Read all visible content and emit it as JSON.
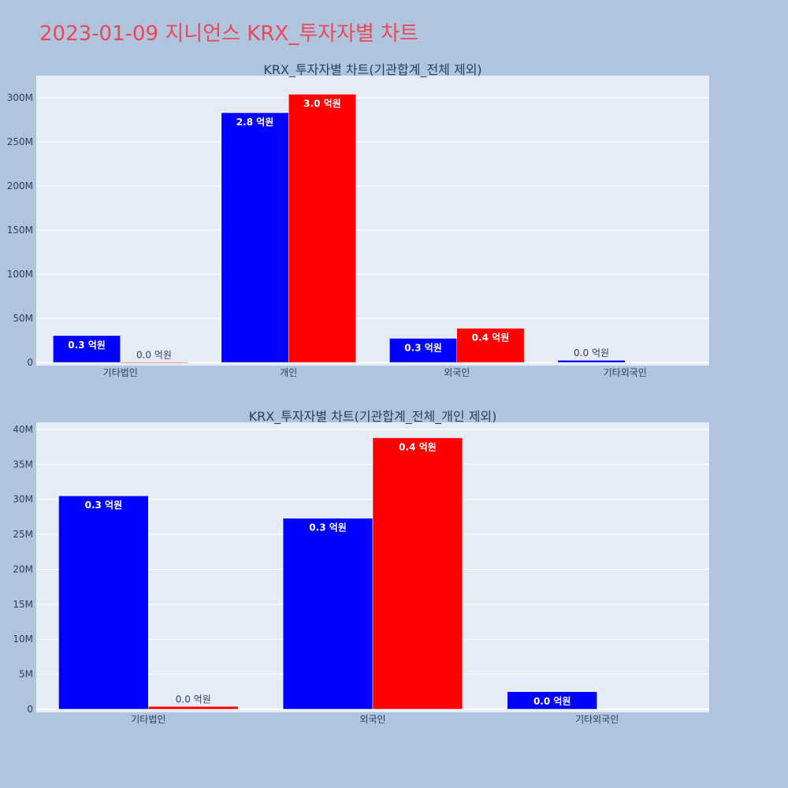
{
  "page_title": "2023-01-09 지니언스 KRX_투자자별 차트",
  "colors": {
    "background": "#b0c4de",
    "plot_bg": "#e5ecf6",
    "title": "#e8495b",
    "series_a": "#0000ff",
    "series_b": "#ff0000"
  },
  "chart_data": [
    {
      "type": "bar",
      "title": "KRX_투자자별 차트(기관합계_전체 제외)",
      "categories": [
        "기타법인",
        "개인",
        "외국인",
        "기타외국인"
      ],
      "ylim": [
        0,
        325000000
      ],
      "yticks": [
        0,
        50000000,
        100000000,
        150000000,
        200000000,
        250000000,
        300000000
      ],
      "ytick_labels": [
        "0",
        "50M",
        "100M",
        "150M",
        "200M",
        "250M",
        "300M"
      ],
      "grid": true,
      "series": [
        {
          "color": "#0000ff",
          "values": [
            30500000,
            283000000,
            27300000,
            2500000
          ],
          "labels": [
            "0.3 억원",
            "2.8 억원",
            "0.3 억원",
            "0.0 억원"
          ]
        },
        {
          "color": "#ff0000",
          "values": [
            400000,
            304000000,
            38800000,
            null
          ],
          "labels": [
            "0.0 억원",
            "3.0 억원",
            "0.4 억원",
            ""
          ]
        }
      ]
    },
    {
      "type": "bar",
      "title": "KRX_투자자별 차트(기관합계_전체_개인 제외)",
      "categories": [
        "기타법인",
        "외국인",
        "기타외국인"
      ],
      "ylim": [
        0,
        41000000
      ],
      "yticks": [
        0,
        5000000,
        10000000,
        15000000,
        20000000,
        25000000,
        30000000,
        35000000,
        40000000
      ],
      "ytick_labels": [
        "0",
        "5M",
        "10M",
        "15M",
        "20M",
        "25M",
        "30M",
        "35M",
        "40M"
      ],
      "grid": true,
      "series": [
        {
          "color": "#0000ff",
          "values": [
            30500000,
            27300000,
            2500000
          ],
          "labels": [
            "0.3 억원",
            "0.3 억원",
            "0.0 억원"
          ]
        },
        {
          "color": "#ff0000",
          "values": [
            400000,
            38800000,
            null
          ],
          "labels": [
            "0.0 억원",
            "0.4 억원",
            ""
          ]
        }
      ]
    }
  ]
}
